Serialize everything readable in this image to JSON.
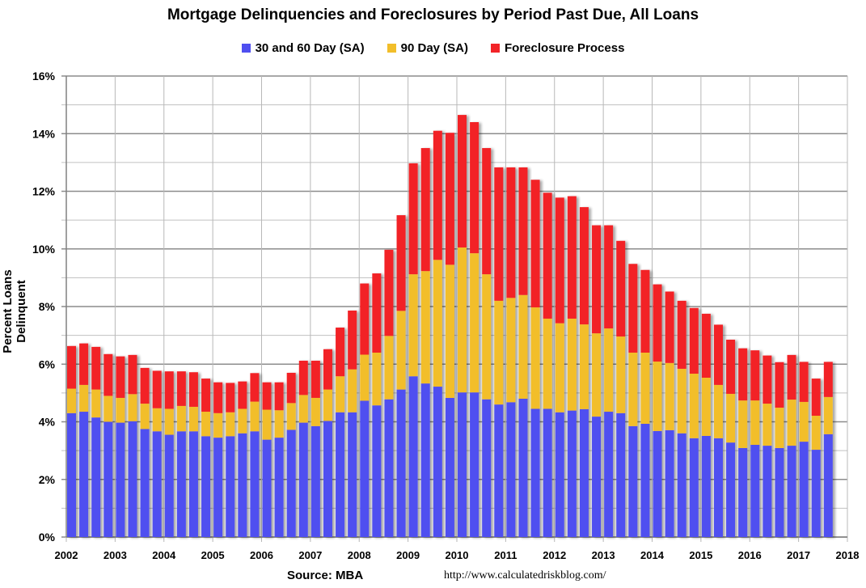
{
  "chart_data": {
    "type": "bar",
    "stacked": true,
    "title": "Mortgage Delinquencies and Foreclosures by Period Past Due, All Loans",
    "ylabel": "Percent Loans Delinquent",
    "xlabel": "",
    "source": "Source: MBA",
    "url": "http://www.calculatedriskblog.com/",
    "ylim": [
      0,
      16
    ],
    "xlim": [
      2002,
      2018
    ],
    "yticks": [
      "0%",
      "2%",
      "4%",
      "6%",
      "8%",
      "10%",
      "12%",
      "14%",
      "16%"
    ],
    "xticks": [
      "2002",
      "2003",
      "2004",
      "2005",
      "2006",
      "2007",
      "2008",
      "2009",
      "2010",
      "2011",
      "2012",
      "2013",
      "2014",
      "2015",
      "2016",
      "2017",
      "2018"
    ],
    "grid": true,
    "legend_position": "top",
    "start_period": "2002 Q1",
    "frequency": "quarterly",
    "series": [
      {
        "name": "30 and 60 Day (SA)",
        "color": "#4f4ff0",
        "values": [
          4.3,
          4.35,
          4.15,
          4.0,
          3.97,
          4.02,
          3.75,
          3.67,
          3.55,
          3.67,
          3.67,
          3.5,
          3.45,
          3.5,
          3.6,
          3.67,
          3.38,
          3.45,
          3.72,
          3.97,
          3.85,
          4.03,
          4.33,
          4.33,
          4.73,
          4.57,
          4.78,
          5.12,
          5.58,
          5.33,
          5.22,
          4.83,
          5.02,
          5.02,
          4.78,
          4.6,
          4.68,
          4.8,
          4.45,
          4.45,
          4.33,
          4.39,
          4.44,
          4.18,
          4.35,
          4.3,
          3.85,
          3.93,
          3.68,
          3.71,
          3.6,
          3.43,
          3.51,
          3.43,
          3.28,
          3.09,
          3.2,
          3.17,
          3.09,
          3.17,
          3.31,
          3.03,
          3.57
        ]
      },
      {
        "name": "90 Day (SA)",
        "color": "#f2be2a",
        "values": [
          0.85,
          0.93,
          0.97,
          0.9,
          0.86,
          0.94,
          0.88,
          0.8,
          0.9,
          0.88,
          0.85,
          0.85,
          0.85,
          0.83,
          0.85,
          1.03,
          1.04,
          0.95,
          0.93,
          0.96,
          0.98,
          1.09,
          1.25,
          1.49,
          1.6,
          1.83,
          2.2,
          2.73,
          3.54,
          3.9,
          4.4,
          4.62,
          5.03,
          4.83,
          4.34,
          3.6,
          3.62,
          3.6,
          3.52,
          3.13,
          3.09,
          3.19,
          2.94,
          2.89,
          2.89,
          2.66,
          2.55,
          2.47,
          2.41,
          2.33,
          2.24,
          2.24,
          2.02,
          1.85,
          1.69,
          1.65,
          1.54,
          1.46,
          1.4,
          1.6,
          1.38,
          1.18,
          1.29
        ]
      },
      {
        "name": "Foreclosure Process",
        "color": "#f22428",
        "values": [
          1.48,
          1.44,
          1.48,
          1.45,
          1.44,
          1.36,
          1.24,
          1.3,
          1.3,
          1.2,
          1.2,
          1.15,
          1.07,
          1.02,
          0.95,
          0.99,
          0.95,
          0.97,
          1.05,
          1.19,
          1.29,
          1.4,
          1.69,
          2.04,
          2.47,
          2.75,
          2.99,
          3.32,
          3.85,
          4.27,
          4.48,
          4.58,
          4.6,
          4.55,
          4.38,
          4.63,
          4.53,
          4.43,
          4.43,
          4.37,
          4.36,
          4.25,
          4.07,
          3.75,
          3.58,
          3.32,
          3.08,
          2.87,
          2.68,
          2.48,
          2.36,
          2.28,
          2.22,
          2.09,
          1.88,
          1.81,
          1.74,
          1.67,
          1.58,
          1.55,
          1.39,
          1.29,
          1.22
        ]
      }
    ]
  }
}
